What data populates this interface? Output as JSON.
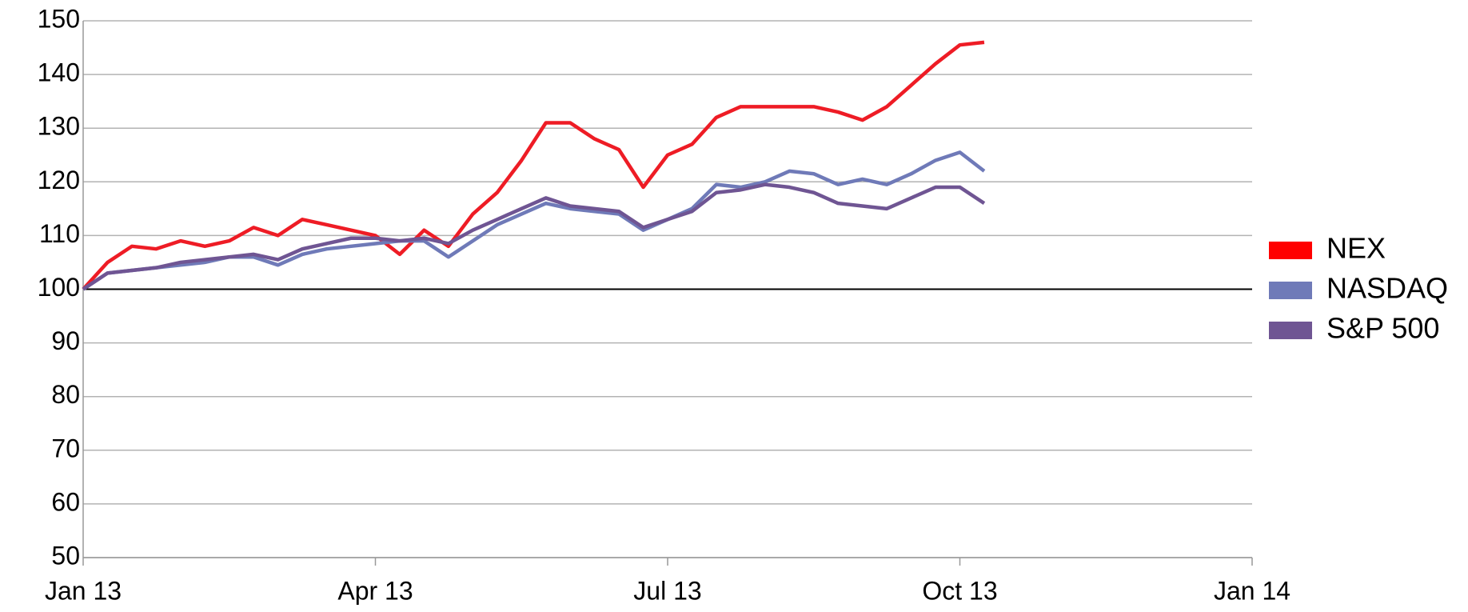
{
  "chart_data": {
    "type": "line",
    "x": [
      0,
      0.25,
      0.5,
      0.75,
      1,
      1.25,
      1.5,
      1.75,
      2,
      2.25,
      2.5,
      2.75,
      3,
      3.25,
      3.5,
      3.75,
      4,
      4.25,
      4.5,
      4.75,
      5,
      5.25,
      5.5,
      5.75,
      6,
      6.25,
      6.5,
      6.75,
      7,
      7.25,
      7.5,
      7.75,
      8,
      8.25,
      8.5,
      8.75,
      9,
      9.25
    ],
    "series": [
      {
        "name": "NEX",
        "color": "#ee1c25",
        "legend_color": "#ff0000",
        "values": [
          100,
          105,
          108,
          107.5,
          109,
          108,
          109,
          111.5,
          110,
          113,
          112,
          111,
          110,
          106.5,
          111,
          108,
          114,
          118,
          124,
          131,
          131,
          128,
          126,
          119,
          125,
          127,
          132,
          134,
          134,
          134,
          134,
          133,
          131.5,
          134,
          138,
          142,
          145.5,
          146
        ]
      },
      {
        "name": "NASDAQ",
        "color": "#6f7ab8",
        "legend_color": "#6f7ab8",
        "values": [
          100,
          103,
          103.5,
          104,
          104.5,
          105,
          106,
          106,
          104.5,
          106.5,
          107.5,
          108,
          108.5,
          109,
          109,
          106,
          109,
          112,
          114,
          116,
          115,
          114.5,
          114,
          111,
          113,
          115,
          119.5,
          119,
          120,
          122,
          121.5,
          119.5,
          120.5,
          119.5,
          121.5,
          124,
          125.5,
          122
        ]
      },
      {
        "name": "S&P 500",
        "color": "#6f5593",
        "legend_color": "#6f5593",
        "values": [
          100,
          103,
          103.5,
          104,
          105,
          105.5,
          106,
          106.5,
          105.5,
          107.5,
          108.5,
          109.5,
          109.5,
          109,
          109.5,
          108.5,
          111,
          113,
          115,
          117,
          115.5,
          115,
          114.5,
          111.5,
          113,
          114.5,
          118,
          118.5,
          119.5,
          119,
          118,
          116,
          115.5,
          115,
          117,
          119,
          119,
          116
        ]
      }
    ],
    "xlim": [
      0,
      12
    ],
    "xticks": [
      {
        "value": 0,
        "label": "Jan 13"
      },
      {
        "value": 3,
        "label": "Apr 13"
      },
      {
        "value": 6,
        "label": "Jul 13"
      },
      {
        "value": 9,
        "label": "Oct 13"
      },
      {
        "value": 12,
        "label": "Jan 14"
      }
    ],
    "ylim": [
      50,
      150
    ],
    "yticks": [
      50,
      60,
      70,
      80,
      90,
      100,
      110,
      120,
      130,
      140,
      150
    ],
    "reference_line": 100,
    "grid": true,
    "legend": "right"
  }
}
